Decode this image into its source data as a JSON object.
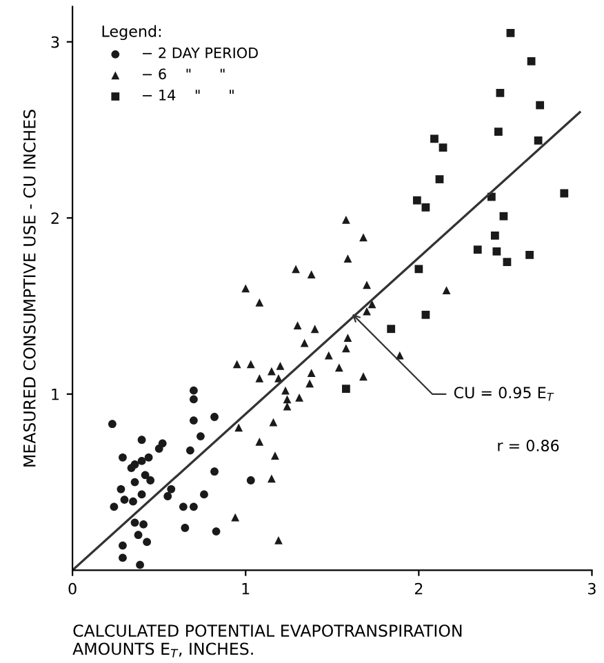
{
  "chart_data": {
    "type": "scatter",
    "xlabel": "CALCULATED POTENTIAL EVAPOTRANSPIRATION\nAMOUNTS E$_{T}$, INCHES.",
    "ylabel": "MEASURED CONSUMPTIVE USE - CU INCHES",
    "legend_title": "Legend:",
    "legend": "top left",
    "grid": false,
    "xlim": [
      0,
      3
    ],
    "ylim": [
      0,
      3.2
    ],
    "xticks": [
      0,
      1,
      2,
      3
    ],
    "yticks": [
      1,
      2,
      3
    ],
    "annotations": [
      {
        "text": "CU = 0.95 E$_{T}$",
        "x": 1.6,
        "y": 1.47
      },
      "r = 0.86"
    ],
    "series": [
      {
        "name": "− 2 DAY PERIOD",
        "color": "#1a1a1a",
        "marker": "circle",
        "x": [
          0.23,
          0.7,
          0.7,
          0.7,
          0.82,
          0.4,
          0.52,
          0.5,
          0.74,
          0.68,
          0.29,
          0.34,
          0.36,
          0.4,
          0.44,
          0.42,
          0.45,
          0.36,
          0.28,
          0.3,
          0.35,
          0.4,
          0.24,
          0.55,
          0.57,
          0.64,
          0.7,
          0.82,
          0.76,
          0.36,
          0.41,
          0.38,
          0.43,
          0.65,
          0.83,
          0.29,
          0.29,
          0.39,
          1.03
        ],
        "values": [
          0.83,
          1.02,
          0.97,
          0.85,
          0.87,
          0.74,
          0.72,
          0.69,
          0.76,
          0.68,
          0.64,
          0.58,
          0.6,
          0.62,
          0.64,
          0.54,
          0.51,
          0.5,
          0.46,
          0.4,
          0.39,
          0.43,
          0.36,
          0.42,
          0.46,
          0.36,
          0.36,
          0.56,
          0.43,
          0.27,
          0.26,
          0.2,
          0.16,
          0.24,
          0.22,
          0.14,
          0.07,
          0.03,
          0.51
        ]
      },
      {
        "name": "− 6    \"      \"",
        "color": "#1a1a1a",
        "marker": "triangle",
        "x": [
          1.58,
          1.68,
          1.59,
          1.29,
          1.38,
          1.0,
          1.08,
          1.7,
          1.73,
          1.7,
          1.3,
          1.4,
          1.34,
          1.59,
          1.58,
          1.48,
          1.89,
          0.95,
          1.03,
          1.08,
          1.15,
          1.2,
          1.19,
          1.38,
          1.37,
          1.54,
          1.68,
          1.23,
          1.24,
          1.31,
          1.24,
          0.96,
          1.16,
          1.08,
          1.17,
          1.15,
          0.94,
          1.19,
          2.16
        ],
        "values": [
          1.99,
          1.89,
          1.77,
          1.71,
          1.68,
          1.6,
          1.52,
          1.62,
          1.51,
          1.47,
          1.39,
          1.37,
          1.29,
          1.32,
          1.26,
          1.22,
          1.22,
          1.17,
          1.17,
          1.09,
          1.13,
          1.16,
          1.09,
          1.12,
          1.06,
          1.15,
          1.1,
          1.02,
          0.97,
          0.98,
          0.93,
          0.81,
          0.84,
          0.73,
          0.65,
          0.52,
          0.3,
          0.17,
          1.59
        ]
      },
      {
        "name": "− 14    \"      \"",
        "color": "#1a1a1a",
        "marker": "square",
        "x": [
          2.53,
          2.65,
          2.47,
          2.7,
          2.46,
          2.69,
          2.09,
          2.14,
          2.12,
          1.99,
          2.04,
          2.42,
          2.84,
          2.49,
          2.44,
          2.34,
          2.45,
          2.51,
          2.64,
          2.0,
          2.04,
          1.84,
          1.58
        ],
        "values": [
          3.05,
          2.89,
          2.71,
          2.64,
          2.49,
          2.44,
          2.45,
          2.4,
          2.22,
          2.1,
          2.06,
          2.12,
          2.14,
          2.01,
          1.9,
          1.82,
          1.81,
          1.75,
          1.79,
          1.71,
          1.45,
          1.37,
          1.03
        ]
      },
      {
        "type": "line",
        "color": "#333333",
        "marker": "none",
        "x": [
          0,
          2.93
        ],
        "values": [
          0,
          2.6
        ]
      }
    ]
  }
}
